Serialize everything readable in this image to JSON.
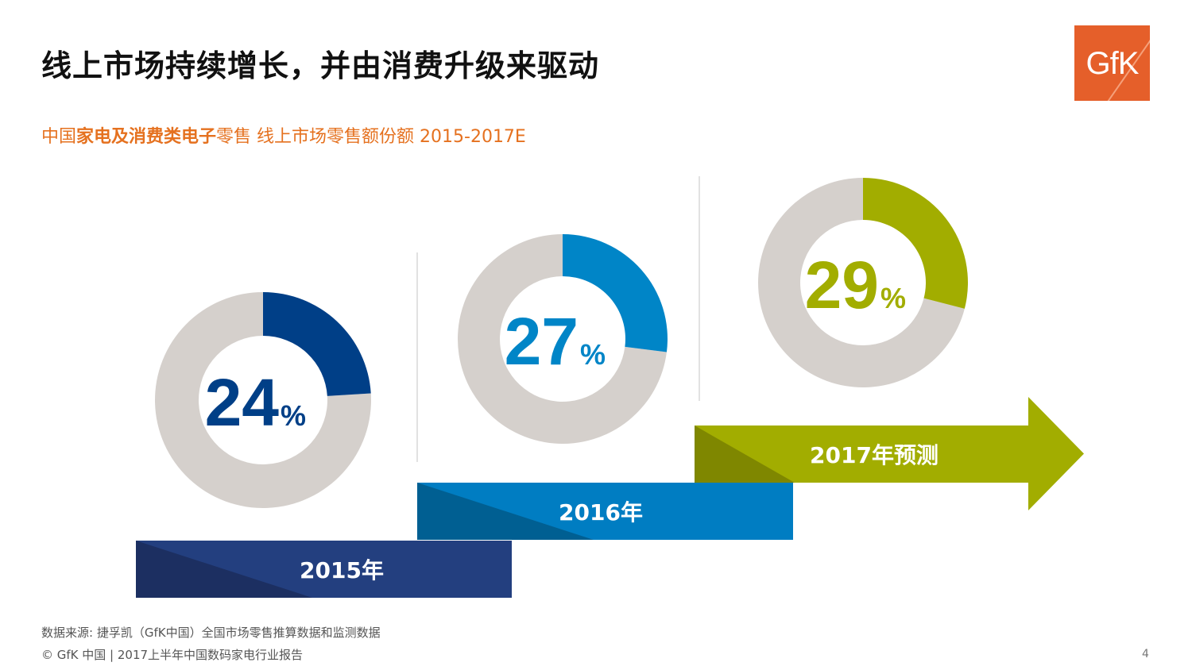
{
  "header": {
    "title": "线上市场持续增长，并由消费升级来驱动",
    "subtitle_prefix": "中国",
    "subtitle_bold": "家电及消费类电子",
    "subtitle_suffix": "零售 线上市场零售额份额 2015-2017E"
  },
  "logo": {
    "text": "GfK",
    "color": "#e55f2a"
  },
  "chart_data": {
    "type": "pie",
    "categories": [
      "2015年",
      "2016年",
      "2017年预测"
    ],
    "values": [
      24,
      27,
      29
    ],
    "unit": "%",
    "donuts": [
      {
        "label": "2015年",
        "value": 24,
        "color": "#003f87",
        "bar_color": "#233f7f",
        "bar_shade": "#1c2f61"
      },
      {
        "label": "2016年",
        "value": 27,
        "color": "#0085c7",
        "bar_color": "#007dc2",
        "bar_shade": "#005f92"
      },
      {
        "label": "2017年预测",
        "value": 29,
        "color": "#a2ad00",
        "bar_color": "#a2ad00",
        "bar_shade": "#7f8700"
      }
    ],
    "remainder_color": "#d5d0cc"
  },
  "footer": {
    "source": "数据来源: 捷孚凯（GfK中国）全国市场零售推算数据和监测数据",
    "copyright": "© GfK 中国 | 2017上半年中国数码家电行业报告",
    "page_number": "4"
  }
}
